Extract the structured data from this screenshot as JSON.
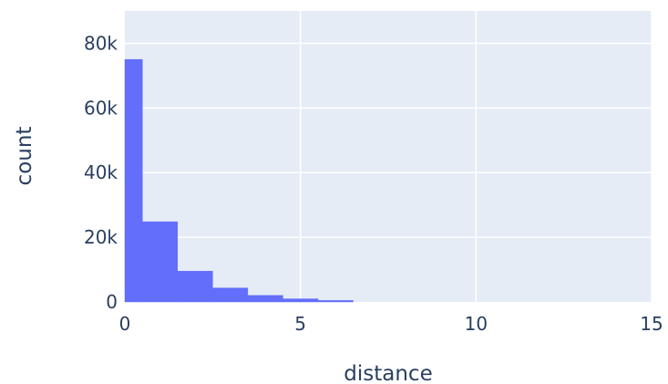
{
  "chart_data": {
    "type": "bar",
    "title": "",
    "xlabel": "distance",
    "ylabel": "count",
    "xlim": [
      0,
      15
    ],
    "ylim": [
      0,
      90000
    ],
    "x_ticks": [
      0,
      5,
      10,
      15
    ],
    "x_tick_labels": [
      "0",
      "5",
      "10",
      "15"
    ],
    "y_ticks": [
      0,
      20000,
      40000,
      60000,
      80000
    ],
    "y_tick_labels": [
      "0",
      "20k",
      "40k",
      "60k",
      "80k"
    ],
    "bins": [
      {
        "start": 0.0,
        "end": 0.5,
        "value": 75000
      },
      {
        "start": 0.5,
        "end": 1.5,
        "value": 24800
      },
      {
        "start": 1.5,
        "end": 2.5,
        "value": 9500
      },
      {
        "start": 2.5,
        "end": 3.5,
        "value": 4300
      },
      {
        "start": 3.5,
        "end": 4.5,
        "value": 2000
      },
      {
        "start": 4.5,
        "end": 5.5,
        "value": 950
      },
      {
        "start": 5.5,
        "end": 6.5,
        "value": 450
      }
    ],
    "grid": true,
    "colors": {
      "bar": "#636efa",
      "plot_background": "#e5ecf6",
      "grid": "#ffffff",
      "text": "#2a3f5f"
    }
  }
}
